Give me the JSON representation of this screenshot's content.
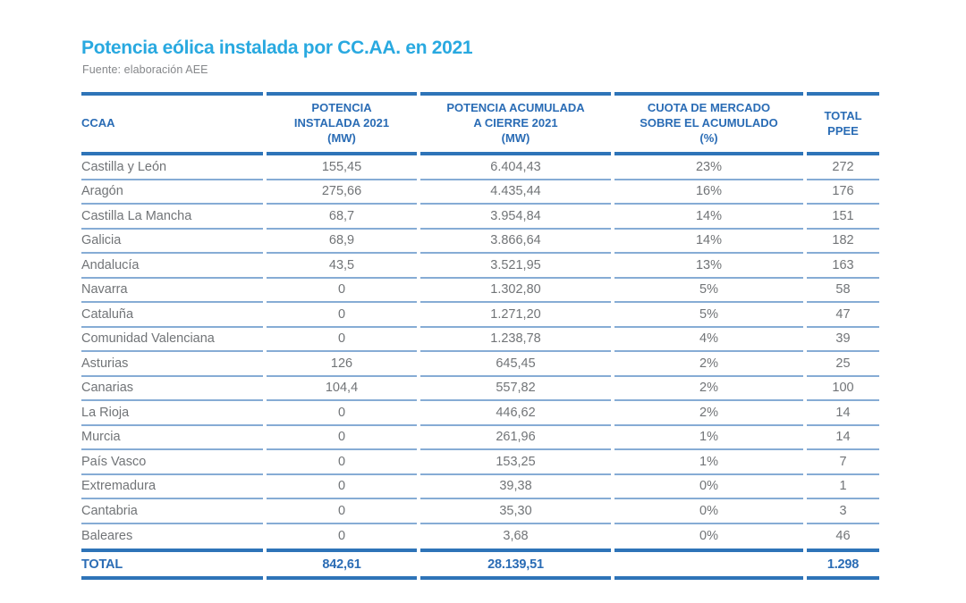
{
  "colors": {
    "accent_cyan": "#29a9e0",
    "header_blue": "#2a6cb5",
    "thick_border_blue": "#2e74b8",
    "thin_border_blue": "#86acd5",
    "body_text_gray": "#717477",
    "subtitle_gray": "#85878a",
    "background": "#ffffff"
  },
  "header": {
    "title": "Potencia eólica instalada por CC.AA. en 2021",
    "subtitle": "Fuente: elaboración AEE"
  },
  "table": {
    "column_headers": [
      {
        "lines": [
          "CCAA"
        ]
      },
      {
        "lines": [
          "POTENCIA",
          "INSTALADA 2021",
          "(MW)"
        ]
      },
      {
        "lines": [
          "POTENCIA ACUMULADA",
          "A CIERRE 2021",
          "(MW)"
        ]
      },
      {
        "lines": [
          "CUOTA DE MERCADO",
          "SOBRE EL ACUMULADO",
          "(%)"
        ]
      },
      {
        "lines": [
          "TOTAL",
          "PPEE"
        ]
      }
    ],
    "rows": [
      {
        "ccaa": "Castilla y León",
        "instalada": "155,45",
        "acumulada": "6.404,43",
        "cuota": "23%",
        "total_ppee": "272"
      },
      {
        "ccaa": "Aragón",
        "instalada": "275,66",
        "acumulada": "4.435,44",
        "cuota": "16%",
        "total_ppee": "176"
      },
      {
        "ccaa": "Castilla La Mancha",
        "instalada": "68,7",
        "acumulada": "3.954,84",
        "cuota": "14%",
        "total_ppee": "151"
      },
      {
        "ccaa": "Galicia",
        "instalada": "68,9",
        "acumulada": "3.866,64",
        "cuota": "14%",
        "total_ppee": "182"
      },
      {
        "ccaa": "Andalucía",
        "instalada": "43,5",
        "acumulada": "3.521,95",
        "cuota": "13%",
        "total_ppee": "163"
      },
      {
        "ccaa": "Navarra",
        "instalada": "0",
        "acumulada": "1.302,80",
        "cuota": "5%",
        "total_ppee": "58"
      },
      {
        "ccaa": "Cataluña",
        "instalada": "0",
        "acumulada": "1.271,20",
        "cuota": "5%",
        "total_ppee": "47"
      },
      {
        "ccaa": "Comunidad Valenciana",
        "instalada": "0",
        "acumulada": "1.238,78",
        "cuota": "4%",
        "total_ppee": "39"
      },
      {
        "ccaa": "Asturias",
        "instalada": "126",
        "acumulada": "645,45",
        "cuota": "2%",
        "total_ppee": "25"
      },
      {
        "ccaa": "Canarias",
        "instalada": "104,4",
        "acumulada": "557,82",
        "cuota": "2%",
        "total_ppee": "100"
      },
      {
        "ccaa": "La Rioja",
        "instalada": "0",
        "acumulada": "446,62",
        "cuota": "2%",
        "total_ppee": "14"
      },
      {
        "ccaa": "Murcia",
        "instalada": "0",
        "acumulada": "261,96",
        "cuota": "1%",
        "total_ppee": "14"
      },
      {
        "ccaa": "País Vasco",
        "instalada": "0",
        "acumulada": "153,25",
        "cuota": "1%",
        "total_ppee": "7"
      },
      {
        "ccaa": "Extremadura",
        "instalada": "0",
        "acumulada": "39,38",
        "cuota": "0%",
        "total_ppee": "1"
      },
      {
        "ccaa": "Cantabria",
        "instalada": "0",
        "acumulada": "35,30",
        "cuota": "0%",
        "total_ppee": "3"
      },
      {
        "ccaa": "Baleares",
        "instalada": "0",
        "acumulada": "3,68",
        "cuota": "0%",
        "total_ppee": "46"
      }
    ],
    "total_row": {
      "label": "TOTAL",
      "instalada": "842,61",
      "acumulada": "28.139,51",
      "cuota": "",
      "total_ppee": "1.298"
    }
  },
  "chart_data": {
    "type": "table",
    "title": "Potencia eólica instalada por CC.AA. en 2021",
    "source": "Fuente: elaboración AEE",
    "columns": [
      "CCAA",
      "POTENCIA INSTALADA 2021 (MW)",
      "POTENCIA ACUMULADA A CIERRE 2021 (MW)",
      "CUOTA DE MERCADO SOBRE EL ACUMULADO (%)",
      "TOTAL PPEE"
    ],
    "rows": [
      [
        "Castilla y León",
        "155,45",
        "6.404,43",
        "23%",
        "272"
      ],
      [
        "Aragón",
        "275,66",
        "4.435,44",
        "16%",
        "176"
      ],
      [
        "Castilla La Mancha",
        "68,7",
        "3.954,84",
        "14%",
        "151"
      ],
      [
        "Galicia",
        "68,9",
        "3.866,64",
        "14%",
        "182"
      ],
      [
        "Andalucía",
        "43,5",
        "3.521,95",
        "13%",
        "163"
      ],
      [
        "Navarra",
        "0",
        "1.302,80",
        "5%",
        "58"
      ],
      [
        "Cataluña",
        "0",
        "1.271,20",
        "5%",
        "47"
      ],
      [
        "Comunidad Valenciana",
        "0",
        "1.238,78",
        "4%",
        "39"
      ],
      [
        "Asturias",
        "126",
        "645,45",
        "2%",
        "25"
      ],
      [
        "Canarias",
        "104,4",
        "557,82",
        "2%",
        "100"
      ],
      [
        "La Rioja",
        "0",
        "446,62",
        "2%",
        "14"
      ],
      [
        "Murcia",
        "0",
        "261,96",
        "1%",
        "14"
      ],
      [
        "País Vasco",
        "0",
        "153,25",
        "1%",
        "7"
      ],
      [
        "Extremadura",
        "0",
        "39,38",
        "0%",
        "1"
      ],
      [
        "Cantabria",
        "0",
        "35,30",
        "0%",
        "3"
      ],
      [
        "Baleares",
        "0",
        "3,68",
        "0%",
        "46"
      ],
      [
        "TOTAL",
        "842,61",
        "28.139,51",
        "",
        "1.298"
      ]
    ]
  }
}
